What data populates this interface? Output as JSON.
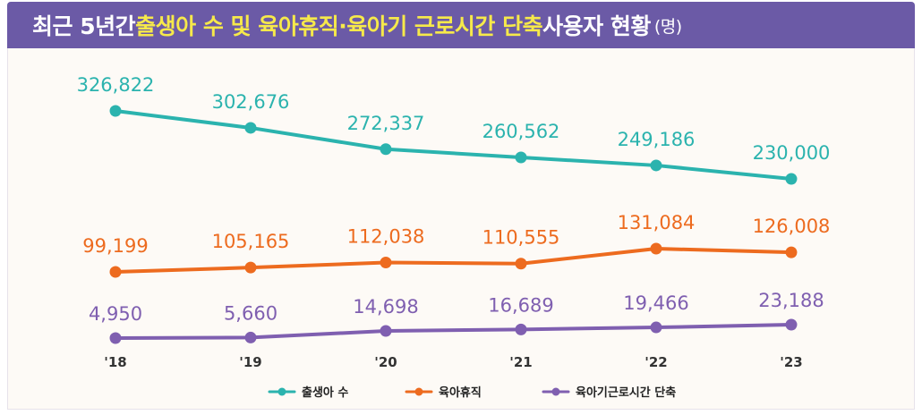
{
  "header": {
    "title_prefix": "최근 5년간 ",
    "title_highlight": "출생아 수 및 육아휴직·육아기 근로시간 단축",
    "title_suffix": " 사용자 현황",
    "title_unit": "(명)"
  },
  "colors": {
    "title_background": "#6b5aa6",
    "title_highlight": "#f6e94a",
    "births": "#2bb3ae",
    "leave": "#ed6b1f",
    "reduced_hours": "#7f5fb0"
  },
  "chart_data": {
    "type": "line",
    "title": "최근 5년간 출생아 수 및 육아휴직·육아기 근로시간 단축 사용자 현황 (명)",
    "categories": [
      "'18",
      "'19",
      "'20",
      "'21",
      "'22",
      "'23"
    ],
    "xlabel": "",
    "ylabel": "",
    "grid": false,
    "legend_position": "bottom",
    "series": [
      {
        "name": "출생아 수",
        "color": "#2bb3ae",
        "values": [
          326822,
          302676,
          272337,
          260562,
          249186,
          230000
        ],
        "labels": [
          "326,822",
          "302,676",
          "272,337",
          "260,562",
          "249,186",
          "230,000"
        ]
      },
      {
        "name": "육아휴직",
        "color": "#ed6b1f",
        "values": [
          99199,
          105165,
          112038,
          110555,
          131084,
          126008
        ],
        "labels": [
          "99,199",
          "105,165",
          "112,038",
          "110,555",
          "131,084",
          "126,008"
        ]
      },
      {
        "name": "육아기근로시간 단축",
        "color": "#7f5fb0",
        "values": [
          4950,
          5660,
          14698,
          16689,
          19466,
          23188
        ],
        "labels": [
          "4,950",
          "5,660",
          "14,698",
          "16,689",
          "19,466",
          "23,188"
        ]
      }
    ]
  }
}
